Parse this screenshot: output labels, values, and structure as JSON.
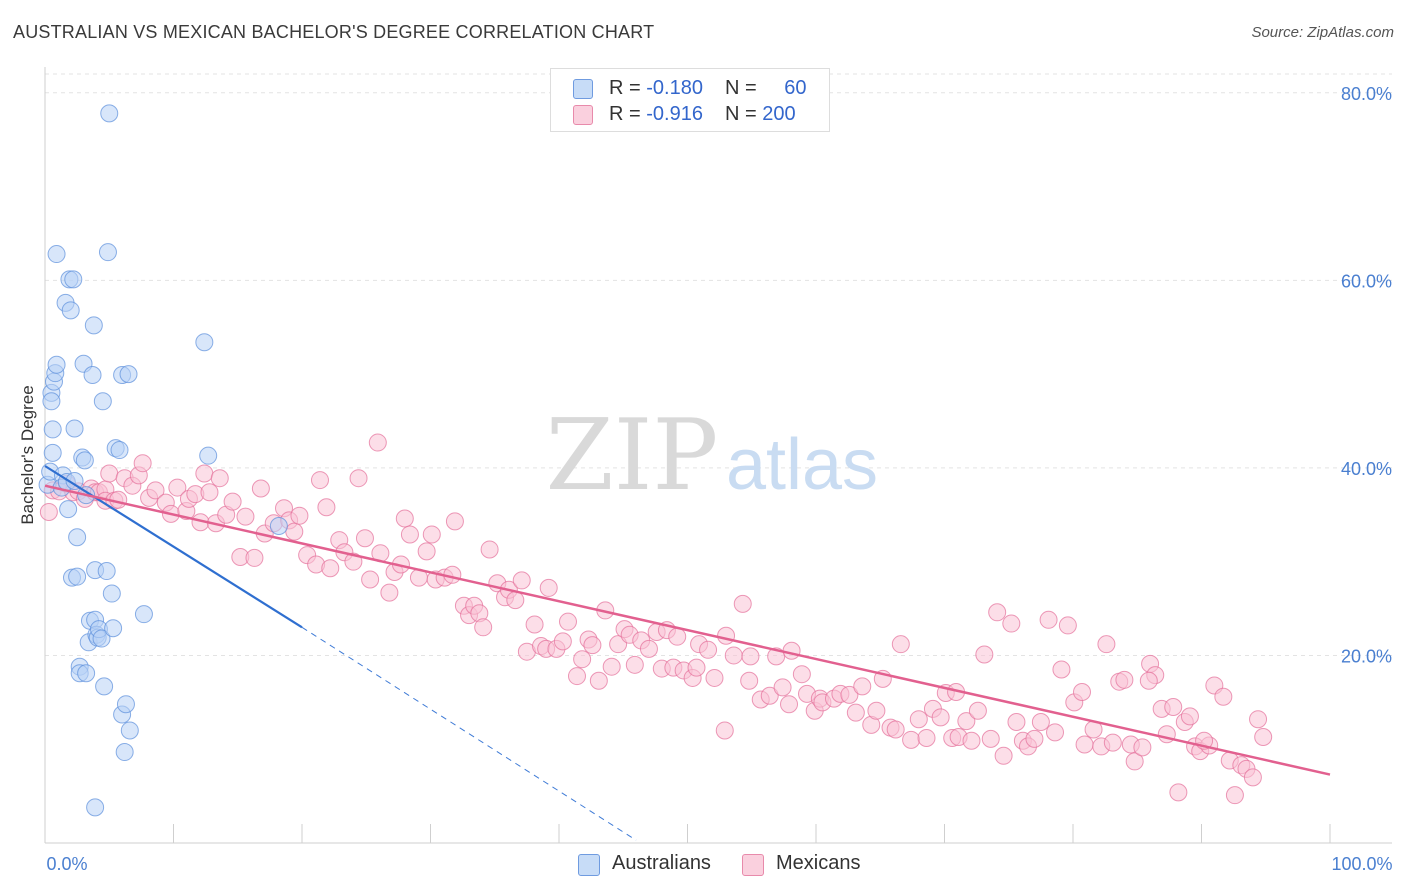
{
  "title": "AUSTRALIAN VS MEXICAN BACHELOR'S DEGREE CORRELATION CHART",
  "source": "Source: ZipAtlas.com",
  "watermark": {
    "zip": "ZIP",
    "atlas": "atlas"
  },
  "legend": {
    "rows": [
      {
        "r_label": "R = ",
        "r_value": "-0.180",
        "n_label": "N = ",
        "n_value": "60",
        "color": "#aecbf3"
      },
      {
        "r_label": "R = ",
        "r_value": "-0.916",
        "n_label": "N = ",
        "n_value": "200",
        "color": "#f7b8cc"
      }
    ]
  },
  "bottom_legend": [
    "Australians",
    "Mexicans"
  ],
  "chart_data": {
    "type": "scatter",
    "title": "AUSTRALIAN VS MEXICAN BACHELOR'S DEGREE CORRELATION CHART",
    "xlabel": "",
    "ylabel": "Bachelor's Degree",
    "xlim": [
      0,
      100
    ],
    "ylim": [
      0,
      82
    ],
    "x_ticks": [
      {
        "value": 0,
        "label": "0.0%"
      },
      {
        "value": 100,
        "label": "100.0%"
      }
    ],
    "y_ticks": [
      {
        "value": 20,
        "label": "20.0%"
      },
      {
        "value": 40,
        "label": "40.0%"
      },
      {
        "value": 60,
        "label": "60.0%"
      },
      {
        "value": 80,
        "label": "80.0%"
      }
    ],
    "grid": true,
    "legend_position": "top-center",
    "series": [
      {
        "name": "Australians",
        "color": "#5b8fdb",
        "fill": "#b8d2f5",
        "trend": {
          "x": [
            0,
            20
          ],
          "y": [
            40.2,
            23
          ],
          "dashed_to": [
            46,
            0.3
          ]
        },
        "points": [
          [
            0.2,
            38.2
          ],
          [
            0.4,
            39.6
          ],
          [
            0.5,
            48
          ],
          [
            0.5,
            47.1
          ],
          [
            0.6,
            41.6
          ],
          [
            0.7,
            49.2
          ],
          [
            0.8,
            50.1
          ],
          [
            0.9,
            51
          ],
          [
            0.6,
            44.1
          ],
          [
            0.9,
            62.8
          ],
          [
            1.4,
            39.2
          ],
          [
            1.3,
            37.9
          ],
          [
            1.6,
            57.6
          ],
          [
            1.7,
            38.5
          ],
          [
            1.8,
            35.6
          ],
          [
            1.9,
            60.1
          ],
          [
            2.0,
            56.8
          ],
          [
            2.1,
            28.3
          ],
          [
            2.2,
            60.1
          ],
          [
            2.3,
            44.2
          ],
          [
            2.5,
            28.4
          ],
          [
            2.5,
            32.6
          ],
          [
            2.7,
            18.8
          ],
          [
            2.7,
            18.1
          ],
          [
            2.9,
            41.1
          ],
          [
            3.0,
            51.1
          ],
          [
            3.1,
            40.8
          ],
          [
            3.2,
            18.1
          ],
          [
            3.2,
            37.1
          ],
          [
            3.4,
            21.4
          ],
          [
            3.5,
            23.7
          ],
          [
            3.7,
            49.9
          ],
          [
            3.8,
            55.2
          ],
          [
            3.9,
            23.8
          ],
          [
            3.9,
            29.1
          ],
          [
            4.0,
            22.2
          ],
          [
            4.1,
            21.9
          ],
          [
            4.2,
            22.8
          ],
          [
            4.4,
            21.8
          ],
          [
            4.5,
            47.1
          ],
          [
            4.6,
            16.7
          ],
          [
            4.9,
            63
          ],
          [
            4.8,
            29
          ],
          [
            5.0,
            77.8
          ],
          [
            5.2,
            26.6
          ],
          [
            5.3,
            22.9
          ],
          [
            5.5,
            42.1
          ],
          [
            5.8,
            41.9
          ],
          [
            6.0,
            49.9
          ],
          [
            6.0,
            13.7
          ],
          [
            6.3,
            14.8
          ],
          [
            6.5,
            50
          ],
          [
            6.6,
            12
          ],
          [
            6.2,
            9.7
          ],
          [
            7.7,
            24.4
          ],
          [
            12.4,
            53.4
          ],
          [
            12.7,
            41.3
          ],
          [
            18.2,
            33.8
          ],
          [
            3.9,
            3.8
          ],
          [
            2.3,
            38.6
          ]
        ]
      },
      {
        "name": "Mexicans",
        "color": "#e46f9a",
        "fill": "#f9c3d5",
        "trend": {
          "x": [
            0,
            100
          ],
          "y": [
            38.1,
            7.3
          ]
        },
        "points": [
          [
            0.3,
            35.3
          ],
          [
            0.6,
            37.6
          ],
          [
            1.1,
            37.5
          ],
          [
            1.7,
            38.3
          ],
          [
            2.2,
            37.4
          ],
          [
            2.6,
            37.5
          ],
          [
            3.1,
            36.7
          ],
          [
            3.6,
            37.8
          ],
          [
            3.9,
            37.4
          ],
          [
            4.2,
            37.4
          ],
          [
            4.7,
            37.7
          ],
          [
            4.7,
            36.5
          ],
          [
            5.0,
            39.4
          ],
          [
            5.4,
            36.5
          ],
          [
            5.7,
            36.6
          ],
          [
            6.2,
            38.9
          ],
          [
            6.8,
            38.1
          ],
          [
            7.3,
            39.2
          ],
          [
            7.6,
            40.5
          ],
          [
            8.1,
            36.8
          ],
          [
            8.6,
            37.6
          ],
          [
            9.4,
            36.3
          ],
          [
            9.8,
            35.1
          ],
          [
            10.3,
            37.9
          ],
          [
            11.0,
            35.4
          ],
          [
            11.2,
            36.7
          ],
          [
            11.7,
            37.2
          ],
          [
            12.1,
            34.2
          ],
          [
            12.4,
            39.4
          ],
          [
            12.8,
            37.4
          ],
          [
            13.3,
            34.1
          ],
          [
            13.6,
            38.9
          ],
          [
            14.1,
            35
          ],
          [
            14.6,
            36.4
          ],
          [
            15.2,
            30.5
          ],
          [
            15.6,
            34.8
          ],
          [
            16.3,
            30.4
          ],
          [
            16.8,
            37.8
          ],
          [
            17.1,
            33
          ],
          [
            17.8,
            34.1
          ],
          [
            18.6,
            35.7
          ],
          [
            19.0,
            34.4
          ],
          [
            19.4,
            33.2
          ],
          [
            19.8,
            34.9
          ],
          [
            20.4,
            30.7
          ],
          [
            21.1,
            29.7
          ],
          [
            21.4,
            38.7
          ],
          [
            21.9,
            35.8
          ],
          [
            22.2,
            29.3
          ],
          [
            22.9,
            32.3
          ],
          [
            23.3,
            31
          ],
          [
            24.0,
            30
          ],
          [
            24.4,
            38.9
          ],
          [
            24.9,
            32.5
          ],
          [
            25.3,
            28.1
          ],
          [
            25.9,
            42.7
          ],
          [
            26.1,
            30.9
          ],
          [
            26.8,
            26.7
          ],
          [
            27.2,
            28.9
          ],
          [
            27.7,
            29.7
          ],
          [
            28.0,
            34.6
          ],
          [
            28.4,
            32.9
          ],
          [
            29.1,
            28.3
          ],
          [
            29.7,
            31.1
          ],
          [
            30.1,
            32.9
          ],
          [
            30.4,
            28.1
          ],
          [
            31.1,
            28.3
          ],
          [
            31.7,
            28.6
          ],
          [
            31.9,
            34.3
          ],
          [
            32.6,
            25.3
          ],
          [
            33.0,
            24.3
          ],
          [
            33.4,
            25.3
          ],
          [
            33.8,
            24.5
          ],
          [
            34.1,
            23
          ],
          [
            34.6,
            31.3
          ],
          [
            35.2,
            27.7
          ],
          [
            35.8,
            26.2
          ],
          [
            36.1,
            27
          ],
          [
            36.6,
            25.9
          ],
          [
            37.1,
            28
          ],
          [
            37.5,
            20.4
          ],
          [
            38.1,
            23.3
          ],
          [
            38.6,
            21
          ],
          [
            39.0,
            20.7
          ],
          [
            39.2,
            27.2
          ],
          [
            39.8,
            20.7
          ],
          [
            40.3,
            21.5
          ],
          [
            40.7,
            23.6
          ],
          [
            41.4,
            17.8
          ],
          [
            41.8,
            19.6
          ],
          [
            42.3,
            21.7
          ],
          [
            42.6,
            21.1
          ],
          [
            43.1,
            17.3
          ],
          [
            43.6,
            24.8
          ],
          [
            44.1,
            18.8
          ],
          [
            44.6,
            21.2
          ],
          [
            45.1,
            22.8
          ],
          [
            45.5,
            22.2
          ],
          [
            45.9,
            19
          ],
          [
            46.4,
            21.6
          ],
          [
            47.0,
            20.7
          ],
          [
            47.6,
            22.5
          ],
          [
            48.0,
            18.6
          ],
          [
            48.4,
            22.7
          ],
          [
            48.9,
            18.7
          ],
          [
            49.2,
            22
          ],
          [
            49.7,
            18.4
          ],
          [
            50.4,
            17.6
          ],
          [
            50.7,
            18.7
          ],
          [
            50.9,
            21.2
          ],
          [
            51.6,
            20.6
          ],
          [
            52.1,
            17.6
          ],
          [
            52.9,
            12
          ],
          [
            53.0,
            22.1
          ],
          [
            53.6,
            20
          ],
          [
            54.3,
            25.5
          ],
          [
            54.8,
            17.3
          ],
          [
            54.9,
            19.9
          ],
          [
            55.7,
            15.3
          ],
          [
            56.4,
            15.7
          ],
          [
            56.9,
            19.9
          ],
          [
            57.4,
            16.6
          ],
          [
            57.9,
            14.8
          ],
          [
            58.1,
            20.5
          ],
          [
            58.9,
            18
          ],
          [
            59.3,
            15.9
          ],
          [
            59.9,
            14.1
          ],
          [
            60.3,
            15.4
          ],
          [
            60.5,
            15
          ],
          [
            61.4,
            15.4
          ],
          [
            61.9,
            15.9
          ],
          [
            62.6,
            15.8
          ],
          [
            63.1,
            13.9
          ],
          [
            63.6,
            16.7
          ],
          [
            64.3,
            12.6
          ],
          [
            64.7,
            14.1
          ],
          [
            65.2,
            17.5
          ],
          [
            65.8,
            12.3
          ],
          [
            66.2,
            12.1
          ],
          [
            66.6,
            21.2
          ],
          [
            67.4,
            11
          ],
          [
            68.0,
            13.2
          ],
          [
            68.6,
            11.2
          ],
          [
            69.1,
            14.3
          ],
          [
            69.7,
            13.4
          ],
          [
            70.1,
            16
          ],
          [
            70.6,
            11.2
          ],
          [
            71.1,
            11.3
          ],
          [
            71.7,
            13
          ],
          [
            72.1,
            10.9
          ],
          [
            72.6,
            14.1
          ],
          [
            73.1,
            20.1
          ],
          [
            73.6,
            11.1
          ],
          [
            74.1,
            24.6
          ],
          [
            74.6,
            9.3
          ],
          [
            75.2,
            23.4
          ],
          [
            75.6,
            12.9
          ],
          [
            76.1,
            10.9
          ],
          [
            76.5,
            10.3
          ],
          [
            77.0,
            11.1
          ],
          [
            77.5,
            12.9
          ],
          [
            78.1,
            23.8
          ],
          [
            78.6,
            11.8
          ],
          [
            79.1,
            18.5
          ],
          [
            79.6,
            23.2
          ],
          [
            80.1,
            15
          ],
          [
            80.7,
            16.1
          ],
          [
            80.9,
            10.5
          ],
          [
            81.6,
            12.1
          ],
          [
            82.2,
            10.3
          ],
          [
            82.6,
            21.2
          ],
          [
            83.1,
            10.7
          ],
          [
            83.6,
            17.2
          ],
          [
            84.0,
            17.4
          ],
          [
            84.5,
            10.5
          ],
          [
            84.8,
            8.7
          ],
          [
            85.4,
            10.2
          ],
          [
            86.0,
            19.1
          ],
          [
            86.4,
            17.9
          ],
          [
            86.9,
            14.3
          ],
          [
            87.3,
            11.6
          ],
          [
            87.8,
            14.5
          ],
          [
            88.2,
            5.4
          ],
          [
            88.7,
            12.9
          ],
          [
            89.1,
            13.5
          ],
          [
            89.5,
            10.3
          ],
          [
            89.9,
            9.8
          ],
          [
            90.6,
            10.4
          ],
          [
            91.0,
            16.8
          ],
          [
            91.7,
            15.6
          ],
          [
            92.2,
            8.8
          ],
          [
            92.6,
            5.1
          ],
          [
            93.1,
            8.3
          ],
          [
            93.5,
            7.9
          ],
          [
            94.0,
            7
          ],
          [
            94.4,
            13.2
          ],
          [
            94.8,
            11.3
          ],
          [
            85.9,
            17.3
          ],
          [
            90.2,
            10.9
          ],
          [
            70.9,
            16.1
          ]
        ]
      }
    ]
  }
}
